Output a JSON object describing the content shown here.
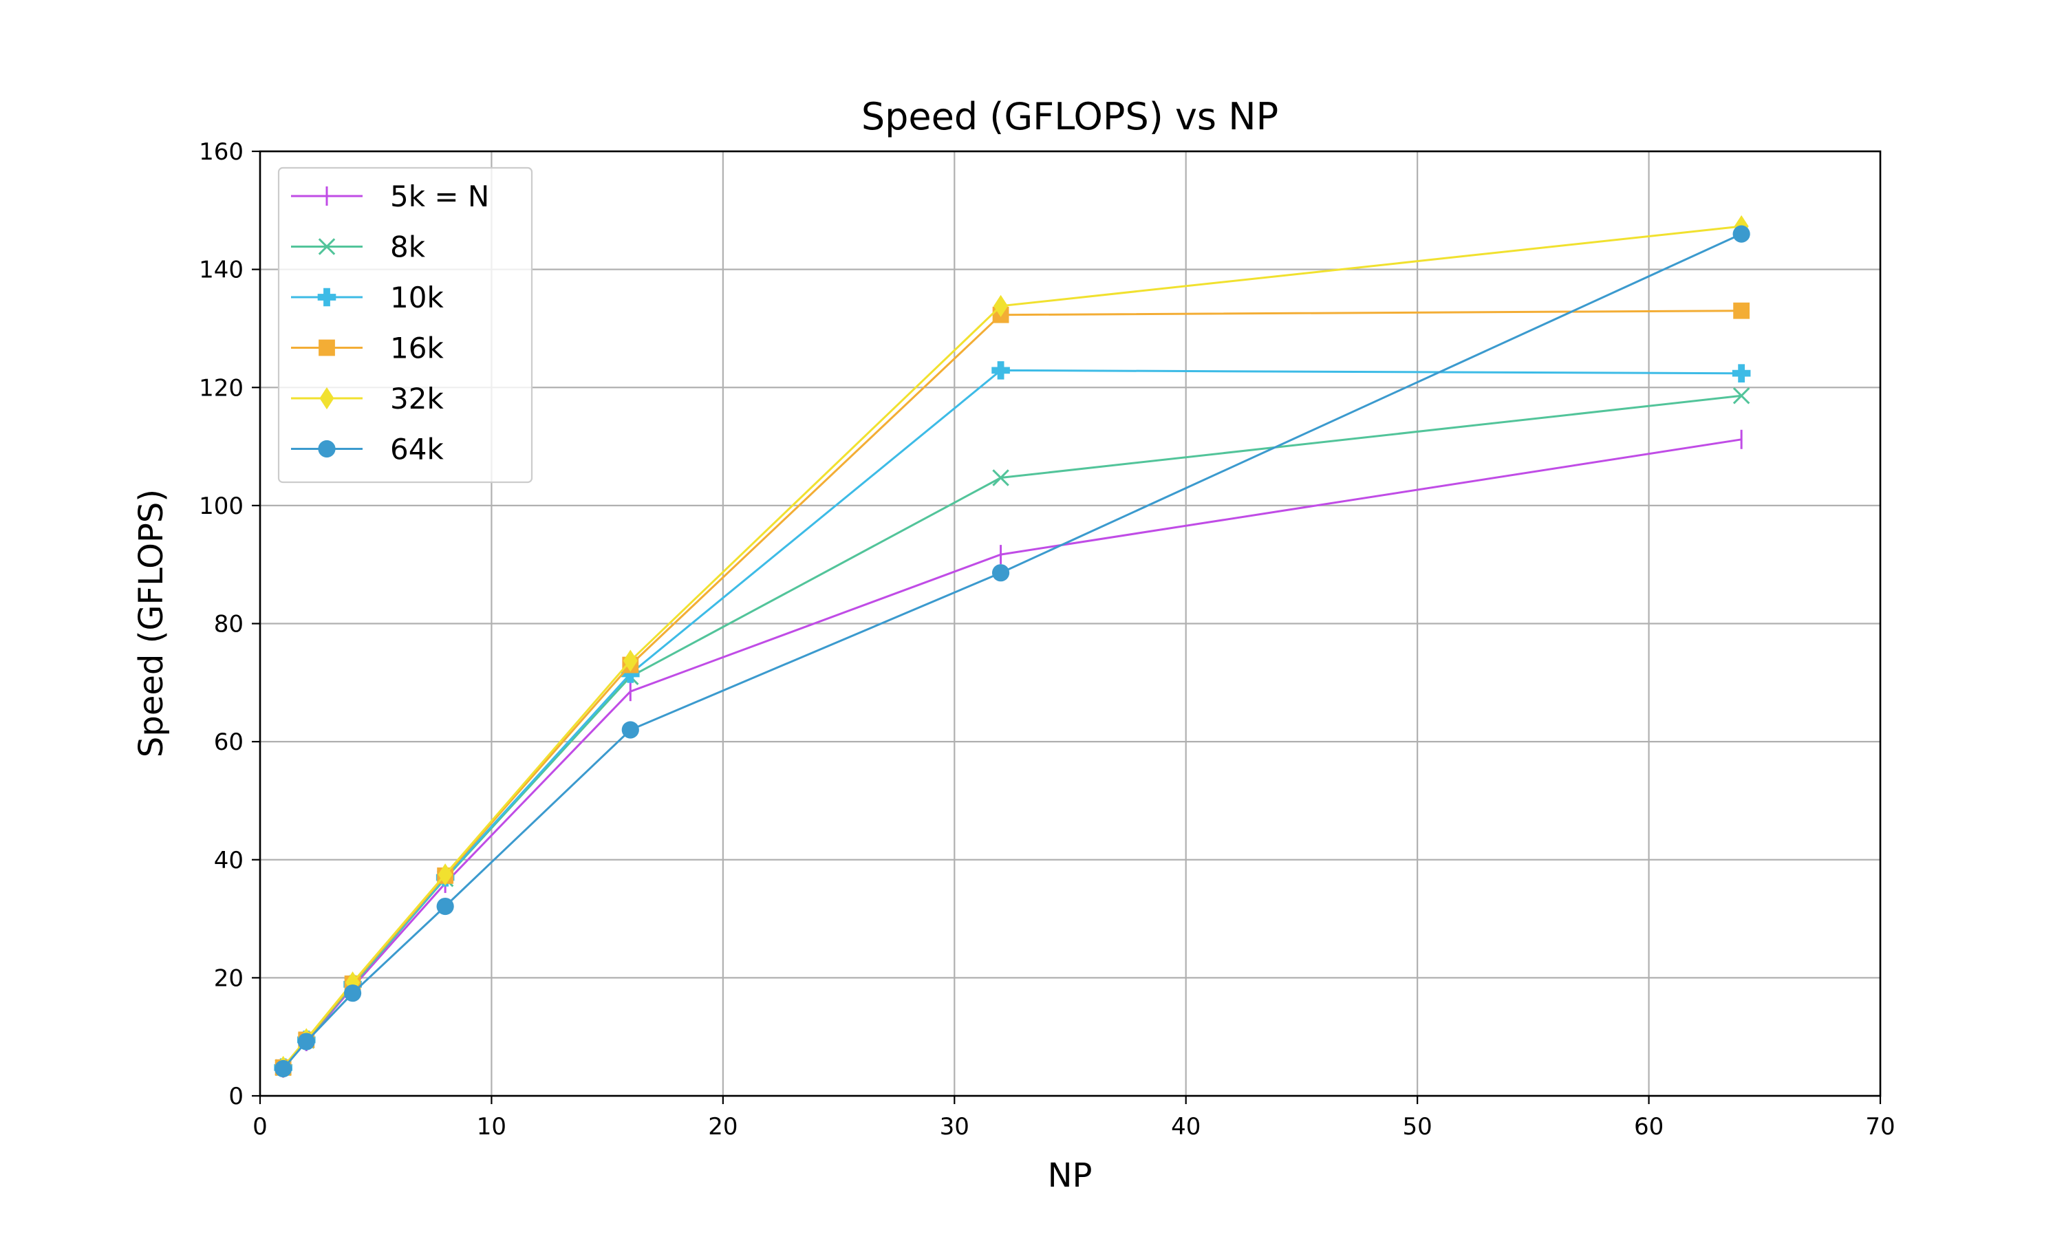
{
  "chart_data": {
    "type": "line",
    "title": "Speed (GFLOPS) vs NP",
    "xlabel": "NP",
    "ylabel": "Speed (GFLOPS)",
    "xlim": [
      0,
      70
    ],
    "ylim": [
      0,
      160
    ],
    "x_ticks": [
      "0",
      "10",
      "20",
      "30",
      "40",
      "50",
      "60",
      "70"
    ],
    "y_ticks": [
      "0",
      "20",
      "40",
      "60",
      "80",
      "100",
      "120",
      "140",
      "160"
    ],
    "grid": true,
    "legend_position": "top-left",
    "x": [
      1,
      2,
      4,
      8,
      16,
      32,
      64
    ],
    "series": [
      {
        "name": "5k = N",
        "color": "#c04ce6",
        "marker": "vline",
        "values": [
          4.7,
          9.2,
          18.4,
          36.0,
          68.5,
          91.7,
          111.2
        ]
      },
      {
        "name": "8k",
        "color": "#52c49a",
        "marker": "x",
        "values": [
          4.8,
          9.4,
          18.7,
          36.8,
          71.0,
          104.7,
          118.6
        ]
      },
      {
        "name": "10k",
        "color": "#3dbbe6",
        "marker": "plus",
        "values": [
          4.8,
          9.5,
          18.9,
          37.0,
          71.5,
          122.9,
          122.4
        ]
      },
      {
        "name": "16k",
        "color": "#f3ad35",
        "marker": "square",
        "values": [
          4.8,
          9.5,
          19.0,
          37.3,
          73.0,
          132.3,
          133.0
        ]
      },
      {
        "name": "32k",
        "color": "#f1e12f",
        "marker": "diamond",
        "values": [
          4.9,
          9.6,
          19.2,
          37.5,
          73.7,
          133.8,
          147.3
        ]
      },
      {
        "name": "64k",
        "color": "#3b9ace",
        "marker": "circle",
        "values": [
          4.6,
          9.2,
          17.4,
          32.1,
          62.0,
          88.6,
          146.0
        ]
      }
    ]
  }
}
